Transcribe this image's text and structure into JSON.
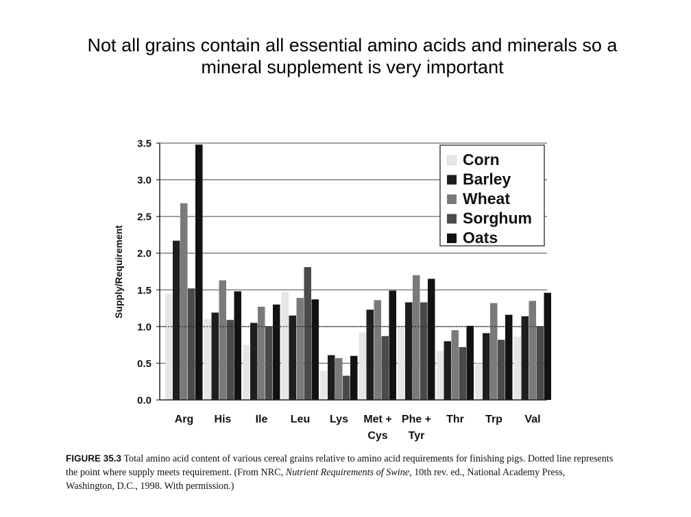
{
  "slide": {
    "title_line1": "Not all grains contain all essential amino acids and minerals so a",
    "title_line2": "mineral supplement is very important"
  },
  "chart_data": {
    "type": "bar",
    "ylabel": "Supply/Requirement",
    "xlabel": "",
    "ylim": [
      0,
      3.5
    ],
    "yticks": [
      "0.0",
      "0.5",
      "1.0",
      "1.5",
      "2.0",
      "2.5",
      "3.0",
      "3.5"
    ],
    "grid": true,
    "reference_line": 1.0,
    "legend_position": "top-right",
    "categories": [
      [
        "Arg"
      ],
      [
        "His"
      ],
      [
        "Ile"
      ],
      [
        "Leu"
      ],
      [
        "Lys"
      ],
      [
        "Met +",
        "Cys"
      ],
      [
        "Phe +",
        "Tyr"
      ],
      [
        "Thr"
      ],
      [
        "Trp"
      ],
      [
        "Val"
      ]
    ],
    "series": [
      {
        "name": "Corn",
        "color": "#e6e6e6",
        "values": [
          1.45,
          1.1,
          0.75,
          1.47,
          0.4,
          0.92,
          1.0,
          0.67,
          0.5,
          0.86
        ]
      },
      {
        "name": "Barley",
        "color": "#1e1e1e",
        "values": [
          2.17,
          1.19,
          1.05,
          1.15,
          0.61,
          1.23,
          1.33,
          0.8,
          0.91,
          1.14
        ]
      },
      {
        "name": "Wheat",
        "color": "#7a7a7a",
        "values": [
          2.68,
          1.63,
          1.27,
          1.39,
          0.57,
          1.36,
          1.7,
          0.95,
          1.32,
          1.35
        ]
      },
      {
        "name": "Sorghum",
        "color": "#4a4a4a",
        "values": [
          1.52,
          1.09,
          1.0,
          1.81,
          0.33,
          0.87,
          1.33,
          0.72,
          0.82,
          1.0
        ]
      },
      {
        "name": "Oats",
        "color": "#121212",
        "values": [
          3.48,
          1.48,
          1.3,
          1.37,
          0.6,
          1.49,
          1.65,
          1.01,
          1.16,
          1.46
        ]
      }
    ]
  },
  "caption": {
    "label": "FIGURE 35.3",
    "text1": " Total amino acid content of various cereal grains relative to amino acid requirements for finishing pigs. Dotted line represents the point where supply meets requirement. (From NRC, ",
    "italic": "Nutrient Requirements of Swine",
    "text2": ", 10th rev. ed., National Academy Press, Washington, D.C., 1998. With permission.)"
  }
}
